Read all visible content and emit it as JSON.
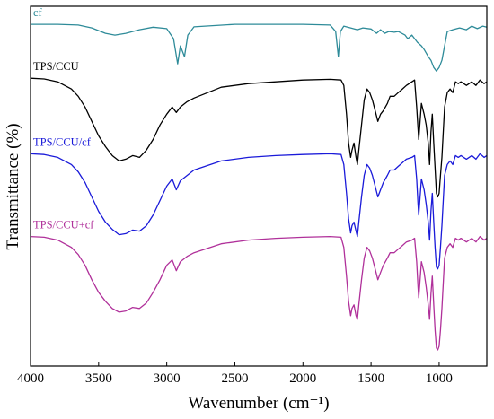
{
  "chart_data": {
    "type": "line",
    "title": "",
    "xlabel": "Wavenumber (cm⁻¹)",
    "ylabel": "Transmittance (%)",
    "xlim": [
      4000,
      650
    ],
    "x_reversed": true,
    "x_ticks": [
      4000,
      3500,
      3000,
      2500,
      2000,
      1500,
      1000
    ],
    "y_ticks_shown": false,
    "y_units": "offset spectra (stacked, arbitrary transmittance units)",
    "ylim": [
      0,
      100
    ],
    "grid": false,
    "legend": "none (labels placed above each trace)",
    "series": [
      {
        "name": "cf",
        "color": "#2E8B99",
        "points": [
          [
            4000,
            95
          ],
          [
            3800,
            95
          ],
          [
            3650,
            94.8
          ],
          [
            3550,
            94
          ],
          [
            3450,
            92.5
          ],
          [
            3380,
            92
          ],
          [
            3300,
            92.5
          ],
          [
            3200,
            93.5
          ],
          [
            3100,
            94.2
          ],
          [
            3000,
            93.8
          ],
          [
            2950,
            91
          ],
          [
            2920,
            84
          ],
          [
            2900,
            89
          ],
          [
            2870,
            86
          ],
          [
            2845,
            92
          ],
          [
            2800,
            94.3
          ],
          [
            2500,
            95
          ],
          [
            2000,
            95
          ],
          [
            1800,
            94.8
          ],
          [
            1760,
            93
          ],
          [
            1740,
            86
          ],
          [
            1725,
            93
          ],
          [
            1700,
            94.5
          ],
          [
            1650,
            94
          ],
          [
            1600,
            93.5
          ],
          [
            1560,
            94
          ],
          [
            1500,
            93.7
          ],
          [
            1460,
            92.5
          ],
          [
            1430,
            93.5
          ],
          [
            1400,
            92.5
          ],
          [
            1370,
            93
          ],
          [
            1330,
            92.8
          ],
          [
            1300,
            93
          ],
          [
            1250,
            92
          ],
          [
            1230,
            91
          ],
          [
            1200,
            92
          ],
          [
            1160,
            90
          ],
          [
            1130,
            89
          ],
          [
            1110,
            88
          ],
          [
            1080,
            86
          ],
          [
            1060,
            85
          ],
          [
            1040,
            83
          ],
          [
            1020,
            82
          ],
          [
            1000,
            83
          ],
          [
            980,
            85
          ],
          [
            960,
            89
          ],
          [
            940,
            93
          ],
          [
            900,
            93.5
          ],
          [
            850,
            94
          ],
          [
            800,
            93.5
          ],
          [
            760,
            94.5
          ],
          [
            720,
            93.8
          ],
          [
            680,
            94.5
          ],
          [
            650,
            94.2
          ]
        ]
      },
      {
        "name": "TPS/CCU",
        "color": "#000000",
        "points": [
          [
            4000,
            80
          ],
          [
            3900,
            79.8
          ],
          [
            3800,
            79
          ],
          [
            3700,
            77
          ],
          [
            3650,
            75
          ],
          [
            3600,
            72
          ],
          [
            3550,
            68
          ],
          [
            3500,
            64
          ],
          [
            3450,
            61
          ],
          [
            3400,
            58.5
          ],
          [
            3350,
            57
          ],
          [
            3300,
            57.5
          ],
          [
            3250,
            58.5
          ],
          [
            3200,
            58
          ],
          [
            3150,
            60
          ],
          [
            3100,
            63
          ],
          [
            3050,
            67
          ],
          [
            3000,
            70
          ],
          [
            2960,
            72
          ],
          [
            2930,
            70.5
          ],
          [
            2900,
            72
          ],
          [
            2850,
            73.5
          ],
          [
            2800,
            74.5
          ],
          [
            2600,
            77.5
          ],
          [
            2400,
            78.5
          ],
          [
            2200,
            79
          ],
          [
            2000,
            79.5
          ],
          [
            1800,
            79.7
          ],
          [
            1720,
            79.5
          ],
          [
            1700,
            78
          ],
          [
            1680,
            70
          ],
          [
            1665,
            62
          ],
          [
            1650,
            58
          ],
          [
            1640,
            60
          ],
          [
            1625,
            62
          ],
          [
            1610,
            58
          ],
          [
            1600,
            56
          ],
          [
            1590,
            60
          ],
          [
            1570,
            67
          ],
          [
            1550,
            74
          ],
          [
            1530,
            77
          ],
          [
            1510,
            76
          ],
          [
            1490,
            74
          ],
          [
            1470,
            71
          ],
          [
            1450,
            68
          ],
          [
            1430,
            70
          ],
          [
            1410,
            71
          ],
          [
            1380,
            73
          ],
          [
            1360,
            75
          ],
          [
            1330,
            75
          ],
          [
            1300,
            76
          ],
          [
            1270,
            77
          ],
          [
            1240,
            78
          ],
          [
            1200,
            79
          ],
          [
            1180,
            79.5
          ],
          [
            1165,
            72
          ],
          [
            1155,
            66
          ],
          [
            1150,
            63
          ],
          [
            1140,
            68
          ],
          [
            1130,
            73
          ],
          [
            1110,
            70
          ],
          [
            1095,
            67
          ],
          [
            1080,
            62
          ],
          [
            1070,
            56
          ],
          [
            1060,
            65
          ],
          [
            1050,
            70
          ],
          [
            1040,
            62
          ],
          [
            1030,
            55
          ],
          [
            1020,
            48
          ],
          [
            1010,
            47
          ],
          [
            1000,
            48
          ],
          [
            990,
            53
          ],
          [
            980,
            58
          ],
          [
            970,
            65
          ],
          [
            960,
            72
          ],
          [
            940,
            76
          ],
          [
            920,
            77
          ],
          [
            900,
            76
          ],
          [
            880,
            79
          ],
          [
            860,
            78.5
          ],
          [
            840,
            79
          ],
          [
            800,
            78
          ],
          [
            760,
            79
          ],
          [
            730,
            78
          ],
          [
            700,
            79.5
          ],
          [
            670,
            78.5
          ],
          [
            650,
            79
          ]
        ]
      },
      {
        "name": "TPS/CCU/cf",
        "color": "#1A1AD9",
        "points": [
          [
            4000,
            59
          ],
          [
            3900,
            58.8
          ],
          [
            3800,
            58
          ],
          [
            3700,
            56
          ],
          [
            3650,
            54
          ],
          [
            3600,
            51
          ],
          [
            3550,
            47
          ],
          [
            3500,
            43
          ],
          [
            3450,
            40
          ],
          [
            3400,
            38
          ],
          [
            3350,
            36.5
          ],
          [
            3300,
            36.8
          ],
          [
            3250,
            37.8
          ],
          [
            3200,
            37.5
          ],
          [
            3150,
            39
          ],
          [
            3100,
            42
          ],
          [
            3050,
            46
          ],
          [
            3000,
            50
          ],
          [
            2960,
            52
          ],
          [
            2930,
            49
          ],
          [
            2900,
            51.5
          ],
          [
            2850,
            53
          ],
          [
            2800,
            54.5
          ],
          [
            2600,
            57
          ],
          [
            2400,
            58
          ],
          [
            2200,
            58.5
          ],
          [
            2000,
            58.8
          ],
          [
            1800,
            59
          ],
          [
            1720,
            58.8
          ],
          [
            1700,
            56
          ],
          [
            1680,
            48
          ],
          [
            1665,
            41
          ],
          [
            1650,
            37
          ],
          [
            1640,
            39
          ],
          [
            1625,
            40
          ],
          [
            1610,
            37.5
          ],
          [
            1600,
            36
          ],
          [
            1590,
            40
          ],
          [
            1570,
            47
          ],
          [
            1550,
            53
          ],
          [
            1530,
            56
          ],
          [
            1510,
            55
          ],
          [
            1490,
            53
          ],
          [
            1470,
            50
          ],
          [
            1450,
            47
          ],
          [
            1430,
            49
          ],
          [
            1410,
            51
          ],
          [
            1380,
            53
          ],
          [
            1360,
            54.5
          ],
          [
            1330,
            54.5
          ],
          [
            1300,
            55.5
          ],
          [
            1270,
            56.5
          ],
          [
            1240,
            57.5
          ],
          [
            1200,
            58
          ],
          [
            1180,
            58.5
          ],
          [
            1165,
            52
          ],
          [
            1155,
            45
          ],
          [
            1150,
            42
          ],
          [
            1140,
            47
          ],
          [
            1130,
            52
          ],
          [
            1110,
            49
          ],
          [
            1095,
            45
          ],
          [
            1080,
            40
          ],
          [
            1070,
            35
          ],
          [
            1060,
            43
          ],
          [
            1050,
            48
          ],
          [
            1040,
            40
          ],
          [
            1030,
            33
          ],
          [
            1020,
            27.5
          ],
          [
            1010,
            27
          ],
          [
            1000,
            28
          ],
          [
            990,
            33
          ],
          [
            980,
            39
          ],
          [
            970,
            46
          ],
          [
            960,
            53
          ],
          [
            940,
            56
          ],
          [
            920,
            57
          ],
          [
            900,
            56
          ],
          [
            880,
            58.5
          ],
          [
            860,
            58
          ],
          [
            840,
            58.5
          ],
          [
            800,
            57.5
          ],
          [
            760,
            58.5
          ],
          [
            730,
            57.5
          ],
          [
            700,
            59
          ],
          [
            670,
            58
          ],
          [
            650,
            58.5
          ]
        ]
      },
      {
        "name": "TPS/CCU+cf",
        "color": "#B0309A",
        "points": [
          [
            4000,
            36
          ],
          [
            3900,
            35.8
          ],
          [
            3800,
            35
          ],
          [
            3700,
            33
          ],
          [
            3650,
            31
          ],
          [
            3600,
            28
          ],
          [
            3550,
            24
          ],
          [
            3500,
            20.5
          ],
          [
            3450,
            18
          ],
          [
            3400,
            16
          ],
          [
            3350,
            15
          ],
          [
            3300,
            15.3
          ],
          [
            3250,
            16.3
          ],
          [
            3200,
            16
          ],
          [
            3150,
            17.5
          ],
          [
            3100,
            20.5
          ],
          [
            3050,
            24
          ],
          [
            3000,
            28
          ],
          [
            2960,
            29.5
          ],
          [
            2930,
            26.5
          ],
          [
            2900,
            29
          ],
          [
            2850,
            30.5
          ],
          [
            2800,
            31.5
          ],
          [
            2600,
            34
          ],
          [
            2400,
            35
          ],
          [
            2200,
            35.5
          ],
          [
            2000,
            35.8
          ],
          [
            1800,
            36
          ],
          [
            1720,
            35.8
          ],
          [
            1700,
            33
          ],
          [
            1680,
            25
          ],
          [
            1665,
            18
          ],
          [
            1650,
            14
          ],
          [
            1640,
            16
          ],
          [
            1625,
            17
          ],
          [
            1610,
            14
          ],
          [
            1600,
            13
          ],
          [
            1590,
            17
          ],
          [
            1570,
            24
          ],
          [
            1550,
            30
          ],
          [
            1530,
            33
          ],
          [
            1510,
            32
          ],
          [
            1490,
            30
          ],
          [
            1470,
            27
          ],
          [
            1450,
            24
          ],
          [
            1430,
            26
          ],
          [
            1410,
            28
          ],
          [
            1380,
            30
          ],
          [
            1360,
            31.5
          ],
          [
            1330,
            31.5
          ],
          [
            1300,
            32.5
          ],
          [
            1270,
            33.5
          ],
          [
            1240,
            34.5
          ],
          [
            1200,
            35
          ],
          [
            1180,
            35.5
          ],
          [
            1165,
            29
          ],
          [
            1155,
            22
          ],
          [
            1150,
            19
          ],
          [
            1140,
            24
          ],
          [
            1130,
            29
          ],
          [
            1110,
            26
          ],
          [
            1095,
            22
          ],
          [
            1080,
            17
          ],
          [
            1070,
            13
          ],
          [
            1060,
            20
          ],
          [
            1050,
            25
          ],
          [
            1040,
            17
          ],
          [
            1030,
            10
          ],
          [
            1020,
            5
          ],
          [
            1010,
            4.5
          ],
          [
            1000,
            5.5
          ],
          [
            990,
            10
          ],
          [
            980,
            16
          ],
          [
            970,
            23
          ],
          [
            960,
            30
          ],
          [
            940,
            33
          ],
          [
            920,
            34
          ],
          [
            900,
            33
          ],
          [
            880,
            35.5
          ],
          [
            860,
            35
          ],
          [
            840,
            35.5
          ],
          [
            800,
            34.5
          ],
          [
            760,
            35.5
          ],
          [
            730,
            34.5
          ],
          [
            700,
            36
          ],
          [
            670,
            35
          ],
          [
            650,
            35.5
          ]
        ]
      }
    ]
  }
}
